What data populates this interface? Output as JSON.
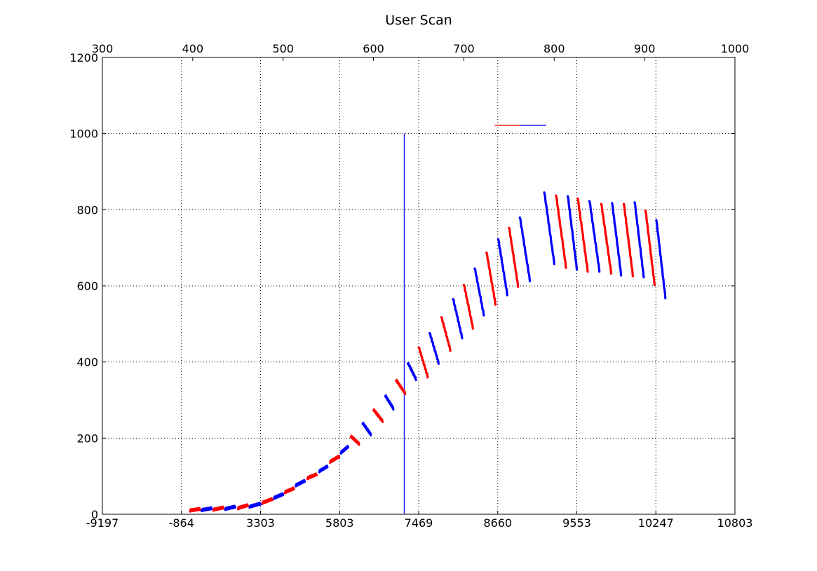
{
  "chart_data": {
    "type": "line",
    "title": "User Scan",
    "xlabel": "",
    "ylabel": "",
    "grid": true,
    "ylim": [
      0,
      1200
    ],
    "yticks": [
      0,
      200,
      400,
      600,
      800,
      1000,
      1200
    ],
    "xticks_bottom": [
      "-9197",
      "-864",
      "3303",
      "5803",
      "7469",
      "8660",
      "9553",
      "10247",
      "10803"
    ],
    "xlim_top": [
      300,
      1000
    ],
    "xticks_top": [
      300,
      400,
      500,
      600,
      700,
      800,
      900,
      1000
    ],
    "colors": {
      "series_a": "#0000ff",
      "series_b": "#ff0000"
    },
    "vertical_line": {
      "x": 634,
      "y_from": 0,
      "y_to": 1000,
      "color": "#0000ff"
    },
    "horizontal_segment": {
      "x_from": 734,
      "x_to": 791,
      "y": 1022,
      "colors": [
        "#ff0000",
        "#0000ff"
      ]
    },
    "segments": [
      {
        "x0": 397,
        "x1": 408,
        "y0": 10,
        "y1": 14,
        "color": "#ff0000"
      },
      {
        "x0": 410,
        "x1": 421,
        "y0": 11,
        "y1": 16,
        "color": "#0000ff"
      },
      {
        "x0": 423,
        "x1": 434,
        "y0": 12,
        "y1": 18,
        "color": "#ff0000"
      },
      {
        "x0": 436,
        "x1": 447,
        "y0": 14,
        "y1": 20,
        "color": "#0000ff"
      },
      {
        "x0": 450,
        "x1": 461,
        "y0": 16,
        "y1": 24,
        "color": "#ff0000"
      },
      {
        "x0": 463,
        "x1": 475,
        "y0": 20,
        "y1": 28,
        "color": "#0000ff"
      },
      {
        "x0": 477,
        "x1": 488,
        "y0": 30,
        "y1": 40,
        "color": "#ff0000"
      },
      {
        "x0": 490,
        "x1": 500,
        "y0": 43,
        "y1": 53,
        "color": "#0000ff"
      },
      {
        "x0": 502,
        "x1": 512,
        "y0": 58,
        "y1": 68,
        "color": "#ff0000"
      },
      {
        "x0": 514,
        "x1": 524,
        "y0": 76,
        "y1": 88,
        "color": "#0000ff"
      },
      {
        "x0": 527,
        "x1": 537,
        "y0": 95,
        "y1": 105,
        "color": "#ff0000"
      },
      {
        "x0": 540,
        "x1": 549,
        "y0": 113,
        "y1": 126,
        "color": "#0000ff"
      },
      {
        "x0": 552,
        "x1": 562,
        "y0": 138,
        "y1": 152,
        "color": "#ff0000"
      },
      {
        "x0": 564,
        "x1": 572,
        "y0": 162,
        "y1": 178,
        "color": "#0000ff"
      },
      {
        "x0": 575,
        "x1": 584,
        "y0": 205,
        "y1": 185,
        "color": "#ff0000"
      },
      {
        "x0": 588,
        "x1": 597,
        "y0": 240,
        "y1": 210,
        "color": "#0000ff"
      },
      {
        "x0": 600,
        "x1": 610,
        "y0": 275,
        "y1": 245,
        "color": "#ff0000"
      },
      {
        "x0": 613,
        "x1": 622,
        "y0": 312,
        "y1": 278,
        "color": "#0000ff"
      },
      {
        "x0": 625,
        "x1": 635,
        "y0": 353,
        "y1": 318,
        "color": "#ff0000"
      },
      {
        "x0": 638,
        "x1": 647,
        "y0": 398,
        "y1": 355,
        "color": "#0000ff"
      },
      {
        "x0": 650,
        "x1": 660,
        "y0": 440,
        "y1": 362,
        "color": "#ff0000"
      },
      {
        "x0": 662,
        "x1": 672,
        "y0": 478,
        "y1": 398,
        "color": "#0000ff"
      },
      {
        "x0": 675,
        "x1": 685,
        "y0": 520,
        "y1": 432,
        "color": "#ff0000"
      },
      {
        "x0": 688,
        "x1": 698,
        "y0": 568,
        "y1": 465,
        "color": "#0000ff"
      },
      {
        "x0": 700,
        "x1": 710,
        "y0": 605,
        "y1": 490,
        "color": "#ff0000"
      },
      {
        "x0": 712,
        "x1": 722,
        "y0": 648,
        "y1": 525,
        "color": "#0000ff"
      },
      {
        "x0": 725,
        "x1": 735,
        "y0": 690,
        "y1": 553,
        "color": "#ff0000"
      },
      {
        "x0": 738,
        "x1": 748,
        "y0": 725,
        "y1": 578,
        "color": "#0000ff"
      },
      {
        "x0": 750,
        "x1": 760,
        "y0": 755,
        "y1": 600,
        "color": "#ff0000"
      },
      {
        "x0": 762,
        "x1": 773,
        "y0": 782,
        "y1": 615,
        "color": "#0000ff"
      },
      {
        "x0": 789,
        "x1": 800,
        "y0": 848,
        "y1": 660,
        "color": "#0000ff"
      },
      {
        "x0": 802,
        "x1": 813,
        "y0": 840,
        "y1": 650,
        "color": "#ff0000"
      },
      {
        "x0": 815,
        "x1": 825,
        "y0": 838,
        "y1": 645,
        "color": "#0000ff"
      },
      {
        "x0": 826,
        "x1": 837,
        "y0": 832,
        "y1": 640,
        "color": "#ff0000"
      },
      {
        "x0": 839,
        "x1": 850,
        "y0": 825,
        "y1": 640,
        "color": "#0000ff"
      },
      {
        "x0": 852,
        "x1": 863,
        "y0": 818,
        "y1": 635,
        "color": "#ff0000"
      },
      {
        "x0": 864,
        "x1": 874,
        "y0": 820,
        "y1": 630,
        "color": "#0000ff"
      },
      {
        "x0": 877,
        "x1": 887,
        "y0": 818,
        "y1": 628,
        "color": "#ff0000"
      },
      {
        "x0": 889,
        "x1": 899,
        "y0": 822,
        "y1": 625,
        "color": "#0000ff"
      },
      {
        "x0": 901,
        "x1": 911,
        "y0": 800,
        "y1": 605,
        "color": "#ff0000"
      },
      {
        "x0": 913,
        "x1": 923,
        "y0": 775,
        "y1": 570,
        "color": "#0000ff"
      }
    ]
  }
}
